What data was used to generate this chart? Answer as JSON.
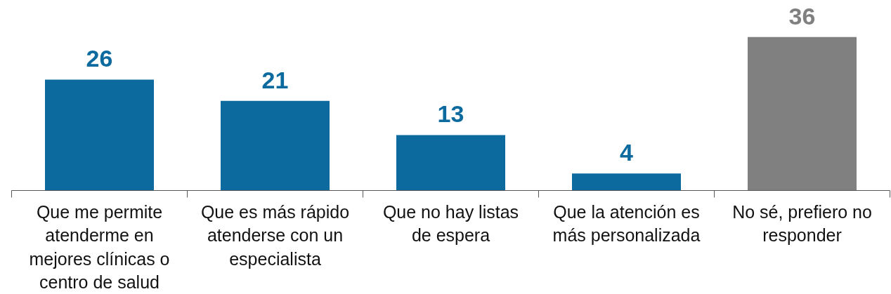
{
  "chart_data": {
    "type": "bar",
    "categories": [
      "Que me permite atenderme en mejores clínicas o centro de salud",
      "Que es más rápido atenderse con un especialista",
      "Que no hay listas de espera",
      "Que la atención es más personalizada",
      "No sé, prefiero no responder"
    ],
    "values": [
      26,
      21,
      13,
      4,
      36
    ],
    "colors": [
      "#0c6a9e",
      "#0c6a9e",
      "#0c6a9e",
      "#0c6a9e",
      "#808080"
    ],
    "data_labels": true,
    "grid": false,
    "tick_labels": "x"
  }
}
